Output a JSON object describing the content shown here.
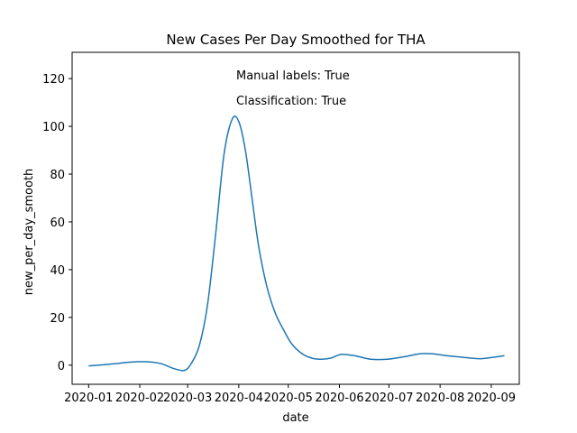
{
  "chart_data": {
    "type": "line",
    "title": "New Cases Per Day Smoothed for THA",
    "xlabel": "date",
    "ylabel": "new_per_day_smooth",
    "annotations": [
      "Manual labels: True",
      "Classification: True"
    ],
    "xlim": [
      "2019-12-22",
      "2020-09-18"
    ],
    "ylim": [
      -8,
      131
    ],
    "xticks": [
      "2020-01-01",
      "2020-02-01",
      "2020-03-01",
      "2020-04-01",
      "2020-05-01",
      "2020-06-01",
      "2020-07-01",
      "2020-08-01",
      "2020-09-01"
    ],
    "xtick_labels": [
      "2020-01",
      "2020-02",
      "2020-03",
      "2020-04",
      "2020-05",
      "2020-06",
      "2020-07",
      "2020-08",
      "2020-09"
    ],
    "yticks": [
      0,
      20,
      40,
      60,
      80,
      100,
      120
    ],
    "grid": false,
    "line_color": "#1f77b4",
    "series": [
      {
        "x": [
          "2020-01-01",
          "2020-01-15",
          "2020-01-25",
          "2020-02-03",
          "2020-02-13",
          "2020-02-22",
          "2020-02-28",
          "2020-03-03",
          "2020-03-08",
          "2020-03-13",
          "2020-03-18",
          "2020-03-23",
          "2020-03-28",
          "2020-04-01",
          "2020-04-05",
          "2020-04-09",
          "2020-04-13",
          "2020-04-18",
          "2020-04-23",
          "2020-04-28",
          "2020-05-03",
          "2020-05-09",
          "2020-05-15",
          "2020-05-21",
          "2020-05-27",
          "2020-06-02",
          "2020-06-10",
          "2020-06-20",
          "2020-06-30",
          "2020-07-10",
          "2020-07-20",
          "2020-07-27",
          "2020-08-05",
          "2020-08-15",
          "2020-08-25",
          "2020-09-02",
          "2020-09-09"
        ],
        "values": [
          -0.3,
          0.5,
          1.2,
          1.5,
          0.8,
          -1.5,
          -2.2,
          0.5,
          8,
          25,
          55,
          88,
          103,
          102,
          90,
          70,
          50,
          33,
          22,
          15,
          9,
          5,
          3,
          2.5,
          3,
          4.5,
          4,
          2.5,
          2.5,
          3.5,
          4.8,
          4.8,
          4,
          3.3,
          2.7,
          3.3,
          4
        ]
      }
    ]
  }
}
